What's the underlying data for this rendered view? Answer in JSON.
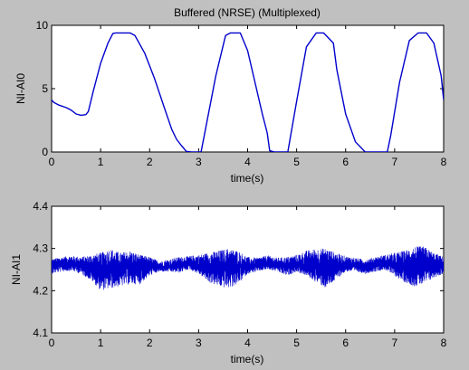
{
  "figure": {
    "title": "Buffered (NRSE) (Multiplexed)",
    "background": "#c0c0c0",
    "axes_background": "#ffffff",
    "line_color": "#0000cc"
  },
  "chart_data": [
    {
      "type": "line",
      "title": "Buffered (NRSE) (Multiplexed)",
      "xlabel": "time(s)",
      "ylabel": "NI-AI0",
      "xlim": [
        0,
        8
      ],
      "ylim": [
        0,
        10
      ],
      "xticks": [
        "0",
        "1",
        "2",
        "3",
        "4",
        "5",
        "6",
        "7",
        "8"
      ],
      "yticks": [
        "0",
        "5",
        "10"
      ],
      "grid": false,
      "series": [
        {
          "x": [
            0,
            0.05,
            0.15,
            0.3,
            0.4,
            0.5,
            0.6,
            0.7,
            0.75,
            0.85,
            1.0,
            1.15,
            1.25,
            1.3,
            1.6,
            1.7,
            1.9,
            2.1,
            2.3,
            2.45,
            2.55,
            2.65,
            2.75,
            2.85,
            3.05,
            3.35,
            3.55,
            3.65,
            3.85,
            4.0,
            4.15,
            4.3,
            4.4,
            4.45,
            4.55,
            4.75,
            4.82,
            5.0,
            5.2,
            5.4,
            5.55,
            5.75,
            5.82,
            6.0,
            6.2,
            6.4,
            6.55,
            6.65,
            6.85,
            6.92,
            7.1,
            7.3,
            7.48,
            7.65,
            7.8,
            7.95,
            8.0
          ],
          "y": [
            4.1,
            3.9,
            3.7,
            3.5,
            3.3,
            3.0,
            2.9,
            2.95,
            3.2,
            4.8,
            7.0,
            8.6,
            9.35,
            9.4,
            9.4,
            9.2,
            7.8,
            5.8,
            3.5,
            1.8,
            1.0,
            0.5,
            0.05,
            0.0,
            0.0,
            6.0,
            9.2,
            9.4,
            9.4,
            8.0,
            5.5,
            3.0,
            1.5,
            0.1,
            0.0,
            0.0,
            0.0,
            4.0,
            8.3,
            9.4,
            9.4,
            8.6,
            6.5,
            3.0,
            0.8,
            0.0,
            0.0,
            0.0,
            0.0,
            1.3,
            5.5,
            8.8,
            9.4,
            9.4,
            8.6,
            6.0,
            4.1
          ]
        }
      ]
    },
    {
      "type": "line",
      "xlabel": "time(s)",
      "ylabel": "NI-AI1",
      "xlim": [
        0,
        8
      ],
      "ylim": [
        4.1,
        4.4
      ],
      "xticks": [
        "0",
        "1",
        "2",
        "3",
        "4",
        "5",
        "6",
        "7",
        "8"
      ],
      "yticks": [
        "4.1",
        "4.2",
        "4.3",
        "4.4"
      ],
      "grid": false,
      "series": [
        {
          "x": [
            0,
            0.2,
            0.4,
            0.6,
            0.8,
            1.0,
            1.2,
            1.4,
            1.6,
            1.8,
            2.0,
            2.2,
            2.4,
            2.6,
            2.8,
            3.0,
            3.2,
            3.4,
            3.6,
            3.8,
            4.0,
            4.2,
            4.4,
            4.6,
            4.8,
            5.0,
            5.2,
            5.4,
            5.6,
            5.8,
            6.0,
            6.2,
            6.4,
            6.6,
            6.8,
            7.0,
            7.2,
            7.4,
            7.6,
            7.8,
            8.0
          ],
          "y": [
            4.26,
            4.262,
            4.265,
            4.26,
            4.255,
            4.25,
            4.25,
            4.255,
            4.255,
            4.258,
            4.26,
            4.256,
            4.255,
            4.262,
            4.265,
            4.26,
            4.258,
            4.255,
            4.26,
            4.258,
            4.255,
            4.26,
            4.265,
            4.262,
            4.258,
            4.26,
            4.258,
            4.255,
            4.26,
            4.258,
            4.262,
            4.26,
            4.256,
            4.262,
            4.265,
            4.258,
            4.256,
            4.255,
            4.26,
            4.258,
            4.26
          ],
          "band_low": [
            4.24,
            4.245,
            4.247,
            4.24,
            4.225,
            4.2,
            4.205,
            4.21,
            4.215,
            4.215,
            4.235,
            4.245,
            4.245,
            4.242,
            4.25,
            4.24,
            4.22,
            4.21,
            4.205,
            4.215,
            4.24,
            4.245,
            4.25,
            4.245,
            4.235,
            4.245,
            4.235,
            4.22,
            4.205,
            4.225,
            4.245,
            4.245,
            4.24,
            4.245,
            4.25,
            4.235,
            4.22,
            4.21,
            4.215,
            4.23,
            4.24
          ],
          "band_high": [
            4.275,
            4.28,
            4.283,
            4.28,
            4.285,
            4.29,
            4.3,
            4.29,
            4.295,
            4.285,
            4.28,
            4.27,
            4.275,
            4.28,
            4.282,
            4.285,
            4.29,
            4.295,
            4.3,
            4.295,
            4.28,
            4.278,
            4.284,
            4.278,
            4.28,
            4.285,
            4.295,
            4.3,
            4.3,
            4.29,
            4.282,
            4.278,
            4.274,
            4.28,
            4.285,
            4.29,
            4.295,
            4.305,
            4.305,
            4.29,
            4.28
          ]
        }
      ]
    }
  ]
}
